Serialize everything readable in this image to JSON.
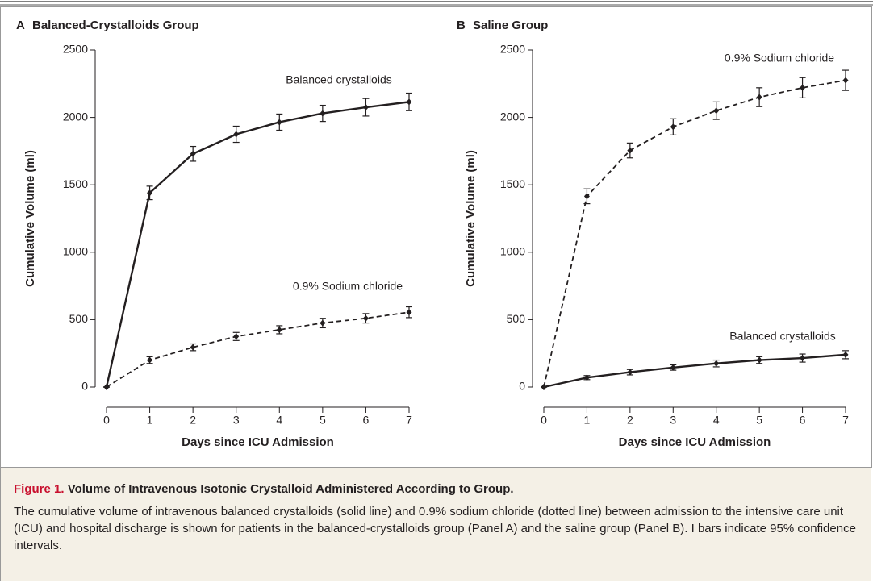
{
  "chart_data": [
    {
      "type": "line",
      "panel": "A",
      "title": "Balanced-Crystalloids Group",
      "xlabel": "Days since ICU Admission",
      "ylabel": "Cumulative Volume (ml)",
      "x": [
        0,
        1,
        2,
        3,
        4,
        5,
        6,
        7
      ],
      "xlim": [
        0,
        7
      ],
      "xticks": [
        0,
        1,
        2,
        3,
        4,
        5,
        6,
        7
      ],
      "ylim": [
        0,
        2500
      ],
      "yticks": [
        0,
        500,
        1000,
        1500,
        2000,
        2500
      ],
      "series": [
        {
          "name": "Balanced crystalloids",
          "color": "#231f20",
          "linestyle": "solid",
          "values": [
            0,
            1440,
            1730,
            1875,
            1965,
            2030,
            2075,
            2115
          ],
          "errors": [
            0,
            50,
            55,
            60,
            60,
            60,
            65,
            65
          ]
        },
        {
          "name": "0.9% Sodium chloride",
          "color": "#231f20",
          "linestyle": "dashed",
          "values": [
            0,
            200,
            295,
            375,
            425,
            475,
            510,
            555
          ],
          "errors": [
            0,
            25,
            25,
            30,
            30,
            35,
            35,
            40
          ]
        }
      ]
    },
    {
      "type": "line",
      "panel": "B",
      "title": "Saline Group",
      "xlabel": "Days since ICU Admission",
      "ylabel": "Cumulative Volume (ml)",
      "x": [
        0,
        1,
        2,
        3,
        4,
        5,
        6,
        7
      ],
      "xlim": [
        0,
        7
      ],
      "xticks": [
        0,
        1,
        2,
        3,
        4,
        5,
        6,
        7
      ],
      "ylim": [
        0,
        2500
      ],
      "yticks": [
        0,
        500,
        1000,
        1500,
        2000,
        2500
      ],
      "series": [
        {
          "name": "0.9% Sodium chloride",
          "color": "#231f20",
          "linestyle": "dashed",
          "values": [
            0,
            1415,
            1755,
            1930,
            2050,
            2150,
            2220,
            2275
          ],
          "errors": [
            0,
            55,
            55,
            60,
            65,
            70,
            75,
            75
          ]
        },
        {
          "name": "Balanced crystalloids",
          "color": "#231f20",
          "linestyle": "solid",
          "values": [
            0,
            70,
            110,
            145,
            175,
            200,
            215,
            240
          ],
          "errors": [
            0,
            15,
            20,
            20,
            25,
            25,
            30,
            30
          ]
        }
      ]
    }
  ],
  "caption": {
    "label": "Figure 1.",
    "title": "Volume of Intravenous Isotonic Crystalloid Administered According to Group.",
    "text": "The cumulative volume of intravenous balanced crystalloids (solid line) and 0.9% sodium chloride (dotted line) between admission to the intensive care unit (ICU) and hospital discharge is shown for patients in the balanced-crystalloids group (Panel A) and the saline group (Panel B). I bars indicate 95% confidence intervals."
  }
}
